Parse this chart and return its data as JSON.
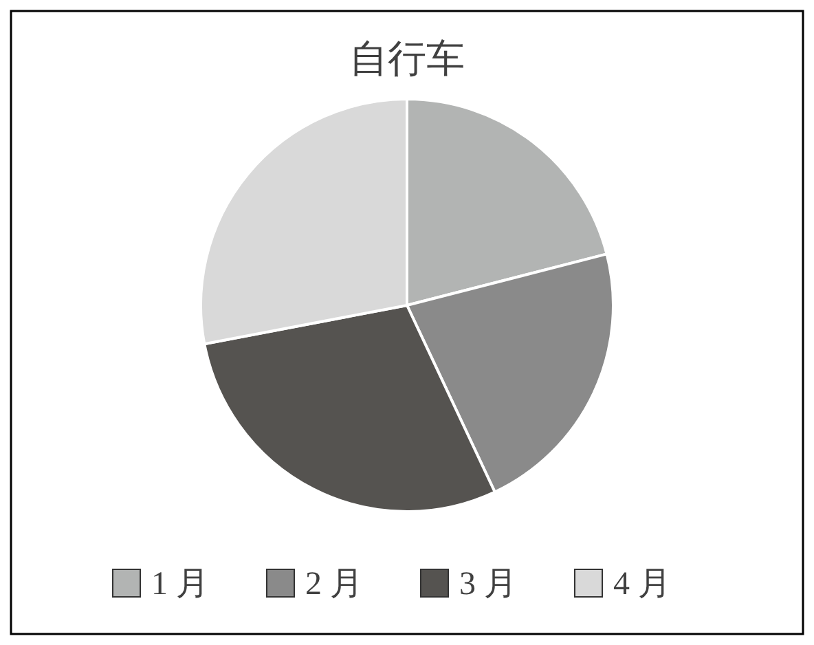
{
  "chart_data": {
    "type": "pie",
    "title": "自行车",
    "categories": [
      "1 月",
      "2 月",
      "3 月",
      "4 月"
    ],
    "values": [
      21,
      22,
      29,
      28
    ],
    "colors": [
      "#b2b4b3",
      "#8a8a8a",
      "#555350",
      "#d9d9d9"
    ],
    "legend": "bottom"
  }
}
